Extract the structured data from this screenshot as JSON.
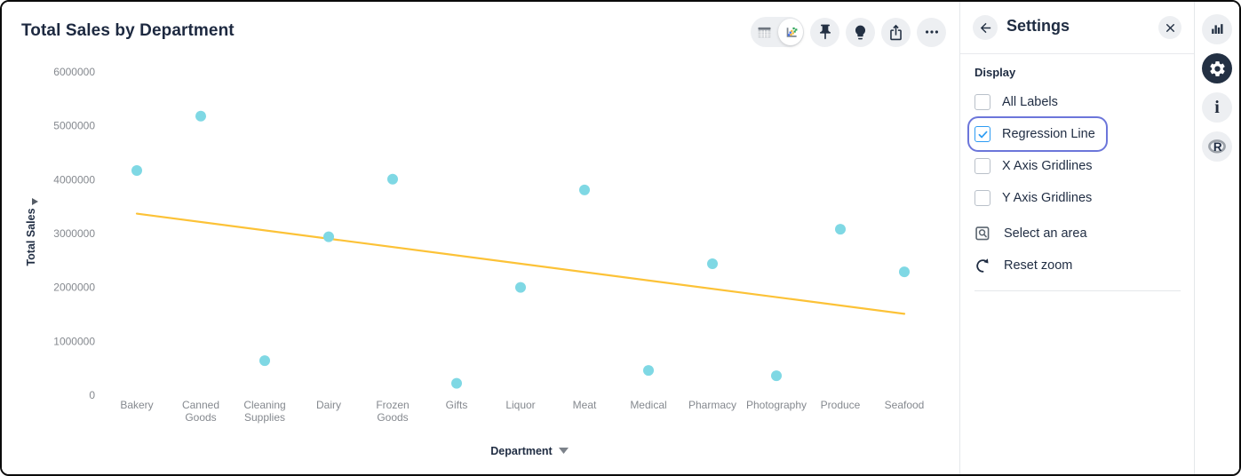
{
  "chart_data": {
    "type": "scatter",
    "title": "Total Sales by Department",
    "xlabel": "Department",
    "ylabel": "Total Sales",
    "categories": [
      "Bakery",
      "Canned Goods",
      "Cleaning Supplies",
      "Dairy",
      "Frozen Goods",
      "Gifts",
      "Liquor",
      "Meat",
      "Medical",
      "Pharmacy",
      "Photography",
      "Produce",
      "Seafood"
    ],
    "values": [
      4170000,
      5180000,
      640000,
      2940000,
      4010000,
      220000,
      2000000,
      3810000,
      460000,
      2440000,
      360000,
      3080000,
      2290000
    ],
    "ylim": [
      0,
      6000000
    ],
    "y_ticks": [
      0,
      1000000,
      2000000,
      3000000,
      4000000,
      5000000,
      6000000
    ],
    "grid": false,
    "legend": "none",
    "point_color": "#7fd8e4",
    "regression_line": {
      "show": true,
      "color": "#fcc237",
      "start_value": 3370000,
      "end_value": 1510000
    }
  },
  "toolbar": {
    "view_switcher": {
      "options": [
        {
          "icon": "table-view-icon",
          "selected": false
        },
        {
          "icon": "chart-view-icon",
          "selected": true
        }
      ]
    },
    "buttons": [
      {
        "icon": "pin-icon"
      },
      {
        "icon": "lightbulb-icon"
      },
      {
        "icon": "share-icon"
      },
      {
        "icon": "more-options-icon"
      }
    ]
  },
  "settings_panel": {
    "title": "Settings",
    "back_icon": "back-arrow-icon",
    "close_icon": "close-icon",
    "section_title": "Display",
    "checkboxes": [
      {
        "label": "All Labels",
        "checked": false,
        "focused": false
      },
      {
        "label": "Regression Line",
        "checked": true,
        "focused": true
      },
      {
        "label": "X Axis Gridlines",
        "checked": false,
        "focused": false
      },
      {
        "label": "Y Axis Gridlines",
        "checked": false,
        "focused": false
      }
    ],
    "actions": [
      {
        "label": "Select an area",
        "icon": "select-area-icon"
      },
      {
        "label": "Reset zoom",
        "icon": "reset-zoom-icon"
      }
    ]
  },
  "right_rail": {
    "icons": [
      {
        "name": "bar-chart-icon",
        "active": false
      },
      {
        "name": "settings-gear-icon",
        "active": true
      },
      {
        "name": "info-icon",
        "active": false
      },
      {
        "name": "r-logo-icon",
        "active": false
      }
    ]
  },
  "colors": {
    "accent_focus": "#6c76da",
    "checkbox_blue": "#2d9cf3",
    "icon_navy": "#233043",
    "point_cyan": "#7fd8e4",
    "regression_yellow": "#fcc237"
  }
}
